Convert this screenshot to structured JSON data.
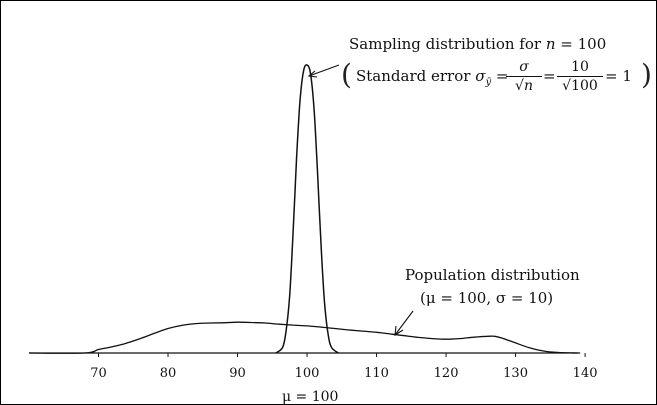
{
  "chart_data": {
    "type": "line",
    "title": "",
    "xlabel": "",
    "ylabel": "",
    "xlim": [
      60,
      142
    ],
    "x_ticks": [
      70,
      80,
      90,
      100,
      110,
      120,
      130,
      140
    ],
    "x_tick_labels": [
      "70",
      "80",
      "90",
      "100",
      "110",
      "120",
      "130",
      "140"
    ],
    "axis_marker_label": "μ = 100",
    "series": [
      {
        "x": [
          60,
          68,
          70,
          72,
          74,
          76,
          78,
          80,
          82,
          84,
          86,
          88,
          90,
          92,
          94,
          96,
          98,
          100,
          102,
          104,
          106,
          108,
          110,
          112,
          114,
          116,
          118,
          120,
          122,
          124,
          126,
          127,
          128,
          130,
          132,
          134,
          136,
          139
        ],
        "y": [
          0,
          0,
          0.012,
          0.022,
          0.034,
          0.05,
          0.068,
          0.085,
          0.096,
          0.102,
          0.104,
          0.105,
          0.107,
          0.106,
          0.104,
          0.1,
          0.097,
          0.094,
          0.09,
          0.085,
          0.08,
          0.076,
          0.072,
          0.066,
          0.06,
          0.054,
          0.05,
          0.048,
          0.05,
          0.055,
          0.058,
          0.058,
          0.052,
          0.035,
          0.018,
          0.007,
          0.002,
          0
        ]
      },
      {
        "x": [
          95.5,
          96.5,
          97,
          97.5,
          98,
          98.5,
          99,
          99.5,
          100,
          100.5,
          101,
          101.5,
          102,
          102.5,
          103,
          103.5,
          104.5
        ],
        "y": [
          0,
          0.02,
          0.08,
          0.2,
          0.42,
          0.68,
          0.88,
          0.98,
          1,
          0.97,
          0.85,
          0.63,
          0.38,
          0.18,
          0.07,
          0.02,
          0
        ]
      }
    ]
  },
  "annotations": {
    "sampling_title_prefix": "Sampling distribution for ",
    "sampling_title_n": "n",
    "sampling_title_suffix": " = 100",
    "open_paren": "(",
    "close_paren": ")",
    "standard_error_label": "Standard error ",
    "sigma_symbol": "σ",
    "ybar_subscript": "ȳ",
    "equals_1": " = ",
    "frac1_num": "σ",
    "frac1_den": "√n",
    "equals_2": " = ",
    "frac2_num": "10",
    "frac2_den": "√100",
    "equals_3": " = 1",
    "population_title": "Population distribution",
    "population_params": "(μ = 100, σ = 10)"
  }
}
